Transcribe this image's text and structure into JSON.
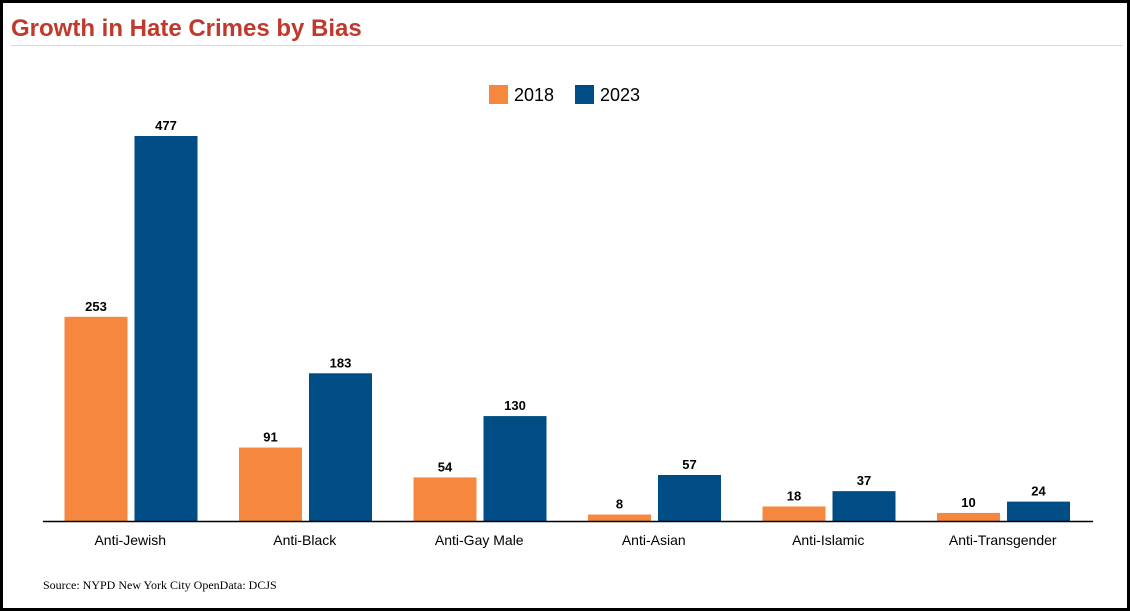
{
  "title": "Growth in Hate Crimes by Bias",
  "source": "Source: NYPD New York City OpenData: DCJS",
  "colors": {
    "title": "#c0392b",
    "series_2018": "#f5873f",
    "series_2023": "#004c84",
    "axis": "#000000"
  },
  "chart_data": {
    "type": "bar",
    "title": "Growth in Hate Crimes by Bias",
    "xlabel": "",
    "ylabel": "",
    "categories": [
      "Anti-Jewish",
      "Anti-Black",
      "Anti-Gay Male",
      "Anti-Asian",
      "Anti-Islamic",
      "Anti-Transgender"
    ],
    "series": [
      {
        "name": "2018",
        "color": "#f5873f",
        "values": [
          253,
          91,
          54,
          8,
          18,
          10
        ]
      },
      {
        "name": "2023",
        "color": "#004c84",
        "values": [
          477,
          183,
          130,
          57,
          37,
          24
        ]
      }
    ],
    "ylim": [
      0,
      477
    ],
    "grid": false,
    "legend": "top-center",
    "data_labels": true
  }
}
